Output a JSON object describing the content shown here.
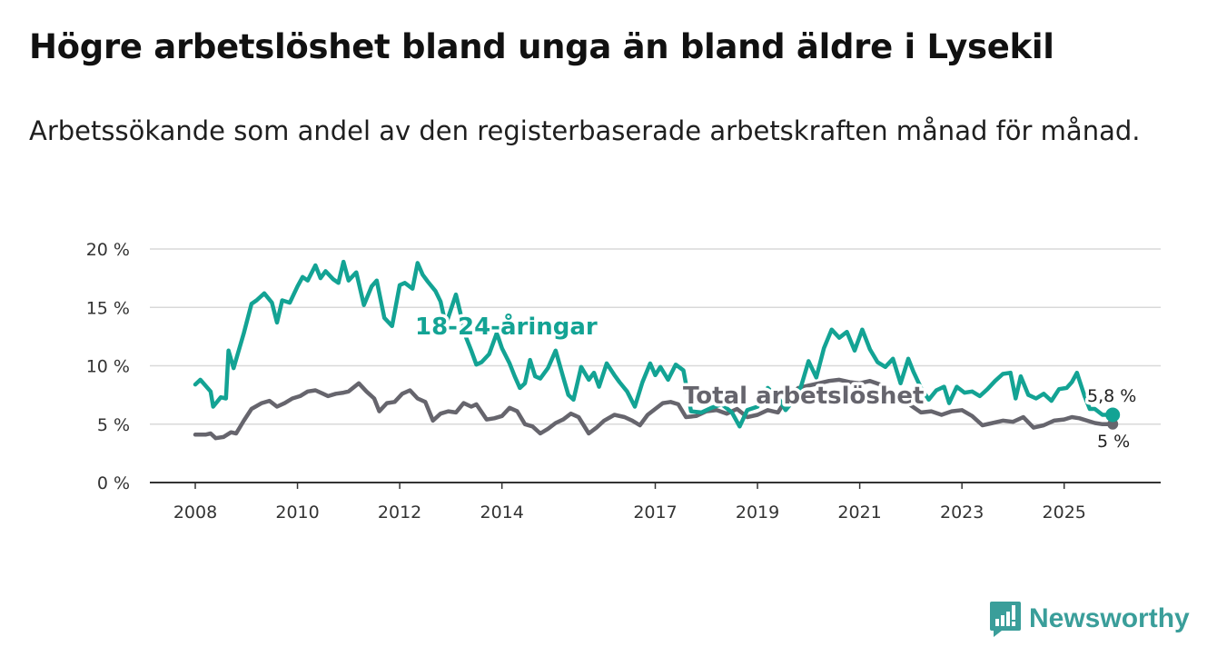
{
  "title": "Högre arbetslöshet bland unga än bland äldre i Lysekil",
  "subtitle": "Arbetssökande som andel av den registerbaserade arbetskraften månad för månad.",
  "brand": {
    "name": "Newsworthy",
    "icon": "newsworthy-logo-icon",
    "color": "#3a9e9a"
  },
  "chart_data": {
    "type": "line",
    "title": "Högre arbetslöshet bland unga än bland äldre i Lysekil",
    "subtitle": "Arbetssökande som andel av den registerbaserade arbetskraften månad för månad.",
    "xlabel": "",
    "ylabel": "",
    "xlim": [
      2008.0,
      2026.0
    ],
    "ylim": [
      0,
      20
    ],
    "grid": true,
    "x_ticks": [
      2008,
      2010,
      2012,
      2014,
      2017,
      2019,
      2021,
      2023,
      2025
    ],
    "x_tick_labels": [
      "2008",
      "2010",
      "2012",
      "2014",
      "2017",
      "2019",
      "2021",
      "2023",
      "2025"
    ],
    "y_ticks": [
      0,
      5,
      10,
      15,
      20
    ],
    "y_tick_labels": [
      "0 %",
      "5 %",
      "10 %",
      "15 %",
      "20 %"
    ],
    "series": [
      {
        "name": "18-24-åringar",
        "label": "18-24-åringar",
        "color": "#13a394",
        "last_label": "5,8 %",
        "x": [
          2008.0,
          2008.1,
          2008.3,
          2008.35,
          2008.5,
          2008.6,
          2008.65,
          2008.75,
          2008.95,
          2009.1,
          2009.2,
          2009.35,
          2009.5,
          2009.6,
          2009.7,
          2009.85,
          2010.0,
          2010.1,
          2010.2,
          2010.35,
          2010.45,
          2010.55,
          2010.7,
          2010.8,
          2010.9,
          2011.0,
          2011.15,
          2011.3,
          2011.45,
          2011.55,
          2011.7,
          2011.85,
          2012.0,
          2012.1,
          2012.25,
          2012.35,
          2012.45,
          2012.55,
          2012.7,
          2012.8,
          2012.9,
          2013.0,
          2013.1,
          2013.2,
          2013.3,
          2013.4,
          2013.5,
          2013.6,
          2013.75,
          2013.9,
          2014.0,
          2014.15,
          2014.25,
          2014.35,
          2014.45,
          2014.55,
          2014.65,
          2014.75,
          2014.9,
          2015.05,
          2015.2,
          2015.3,
          2015.4,
          2015.55,
          2015.7,
          2015.8,
          2015.9,
          2016.05,
          2016.2,
          2016.3,
          2016.45,
          2016.6,
          2016.75,
          2016.9,
          2017.0,
          2017.1,
          2017.25,
          2017.4,
          2017.55,
          2017.7,
          2017.9,
          2018.1,
          2018.3,
          2018.5,
          2018.65,
          2018.8,
          2019.0,
          2019.2,
          2019.4,
          2019.55,
          2019.7,
          2019.85,
          2020.0,
          2020.15,
          2020.3,
          2020.45,
          2020.6,
          2020.75,
          2020.9,
          2021.05,
          2021.2,
          2021.35,
          2021.5,
          2021.65,
          2021.8,
          2021.95,
          2022.05,
          2022.2,
          2022.35,
          2022.5,
          2022.65,
          2022.75,
          2022.9,
          2023.05,
          2023.2,
          2023.35,
          2023.5,
          2023.65,
          2023.8,
          2023.95,
          2024.05,
          2024.15,
          2024.3,
          2024.45,
          2024.6,
          2024.75,
          2024.9,
          2025.05,
          2025.15,
          2025.25,
          2025.4,
          2025.5,
          2025.6,
          2025.75,
          2025.95
        ],
        "values": [
          8.4,
          8.8,
          7.8,
          6.5,
          7.3,
          7.2,
          11.3,
          9.8,
          12.8,
          15.3,
          15.6,
          16.2,
          15.4,
          13.7,
          15.6,
          15.4,
          16.8,
          17.6,
          17.3,
          18.6,
          17.5,
          18.1,
          17.4,
          17.1,
          18.9,
          17.3,
          18.0,
          15.2,
          16.8,
          17.3,
          14.1,
          13.4,
          16.9,
          17.1,
          16.6,
          18.8,
          17.8,
          17.2,
          16.4,
          15.5,
          13.5,
          14.8,
          16.1,
          14.3,
          12.4,
          11.3,
          10.1,
          10.3,
          11.0,
          12.8,
          11.5,
          10.2,
          9.1,
          8.1,
          8.5,
          10.5,
          9.1,
          8.9,
          9.8,
          11.3,
          9.0,
          7.5,
          7.1,
          9.9,
          8.8,
          9.4,
          8.2,
          10.2,
          9.2,
          8.6,
          7.8,
          6.5,
          8.6,
          10.2,
          9.2,
          9.9,
          8.8,
          10.1,
          9.6,
          6.1,
          6.0,
          6.4,
          6.7,
          6.0,
          4.8,
          6.2,
          6.5,
          8.1,
          7.3,
          6.2,
          7.0,
          8.2,
          10.4,
          9.0,
          11.5,
          13.1,
          12.4,
          12.9,
          11.3,
          13.1,
          11.4,
          10.3,
          9.9,
          10.6,
          8.5,
          10.6,
          9.5,
          8.1,
          7.1,
          7.9,
          8.2,
          6.8,
          8.2,
          7.7,
          7.8,
          7.4,
          8.0,
          8.7,
          9.3,
          9.4,
          7.2,
          9.1,
          7.5,
          7.2,
          7.6,
          7.0,
          8.0,
          8.1,
          8.6,
          9.4,
          7.4,
          6.3,
          6.3,
          5.8,
          5.8
        ]
      },
      {
        "name": "Total arbetslöshet",
        "label": "Total arbetslöshet",
        "color": "#66656d",
        "last_label": "5 %",
        "x": [
          2008.0,
          2008.2,
          2008.3,
          2008.4,
          2008.55,
          2008.7,
          2008.8,
          2008.95,
          2009.1,
          2009.3,
          2009.45,
          2009.6,
          2009.75,
          2009.9,
          2010.05,
          2010.2,
          2010.35,
          2010.5,
          2010.6,
          2010.75,
          2010.9,
          2011.0,
          2011.2,
          2011.35,
          2011.5,
          2011.6,
          2011.75,
          2011.9,
          2012.05,
          2012.2,
          2012.35,
          2012.5,
          2012.65,
          2012.8,
          2012.95,
          2013.1,
          2013.25,
          2013.4,
          2013.5,
          2013.7,
          2013.85,
          2014.0,
          2014.15,
          2014.3,
          2014.45,
          2014.6,
          2014.75,
          2014.9,
          2015.05,
          2015.2,
          2015.35,
          2015.5,
          2015.7,
          2015.85,
          2016.0,
          2016.2,
          2016.4,
          2016.55,
          2016.7,
          2016.85,
          2017.0,
          2017.15,
          2017.3,
          2017.45,
          2017.6,
          2017.8,
          2018.0,
          2018.2,
          2018.4,
          2018.6,
          2018.8,
          2019.0,
          2019.2,
          2019.4,
          2019.6,
          2019.8,
          2020.0,
          2020.2,
          2020.4,
          2020.6,
          2020.8,
          2021.0,
          2021.2,
          2021.4,
          2021.6,
          2021.8,
          2022.0,
          2022.2,
          2022.4,
          2022.6,
          2022.8,
          2023.0,
          2023.2,
          2023.4,
          2023.6,
          2023.8,
          2024.0,
          2024.2,
          2024.4,
          2024.6,
          2024.8,
          2025.0,
          2025.15,
          2025.3,
          2025.45,
          2025.6,
          2025.75,
          2025.95
        ],
        "values": [
          4.1,
          4.1,
          4.2,
          3.8,
          3.9,
          4.3,
          4.2,
          5.3,
          6.3,
          6.8,
          7.0,
          6.5,
          6.8,
          7.2,
          7.4,
          7.8,
          7.9,
          7.6,
          7.4,
          7.6,
          7.7,
          7.8,
          8.5,
          7.8,
          7.2,
          6.1,
          6.8,
          6.9,
          7.6,
          7.9,
          7.2,
          6.9,
          5.3,
          5.9,
          6.1,
          6.0,
          6.8,
          6.5,
          6.7,
          5.4,
          5.5,
          5.7,
          6.4,
          6.1,
          5.0,
          4.8,
          4.2,
          4.6,
          5.1,
          5.4,
          5.9,
          5.6,
          4.2,
          4.7,
          5.3,
          5.8,
          5.6,
          5.3,
          4.9,
          5.8,
          6.3,
          6.8,
          6.9,
          6.7,
          5.6,
          5.7,
          6.1,
          6.2,
          5.9,
          6.3,
          5.6,
          5.8,
          6.2,
          6.0,
          7.4,
          8.1,
          8.3,
          8.5,
          8.7,
          8.8,
          8.6,
          8.5,
          8.7,
          8.4,
          7.9,
          7.5,
          6.6,
          6.0,
          6.1,
          5.8,
          6.1,
          6.2,
          5.7,
          4.9,
          5.1,
          5.3,
          5.2,
          5.6,
          4.7,
          4.9,
          5.3,
          5.4,
          5.6,
          5.5,
          5.3,
          5.1,
          5.0,
          5.0
        ]
      }
    ]
  }
}
